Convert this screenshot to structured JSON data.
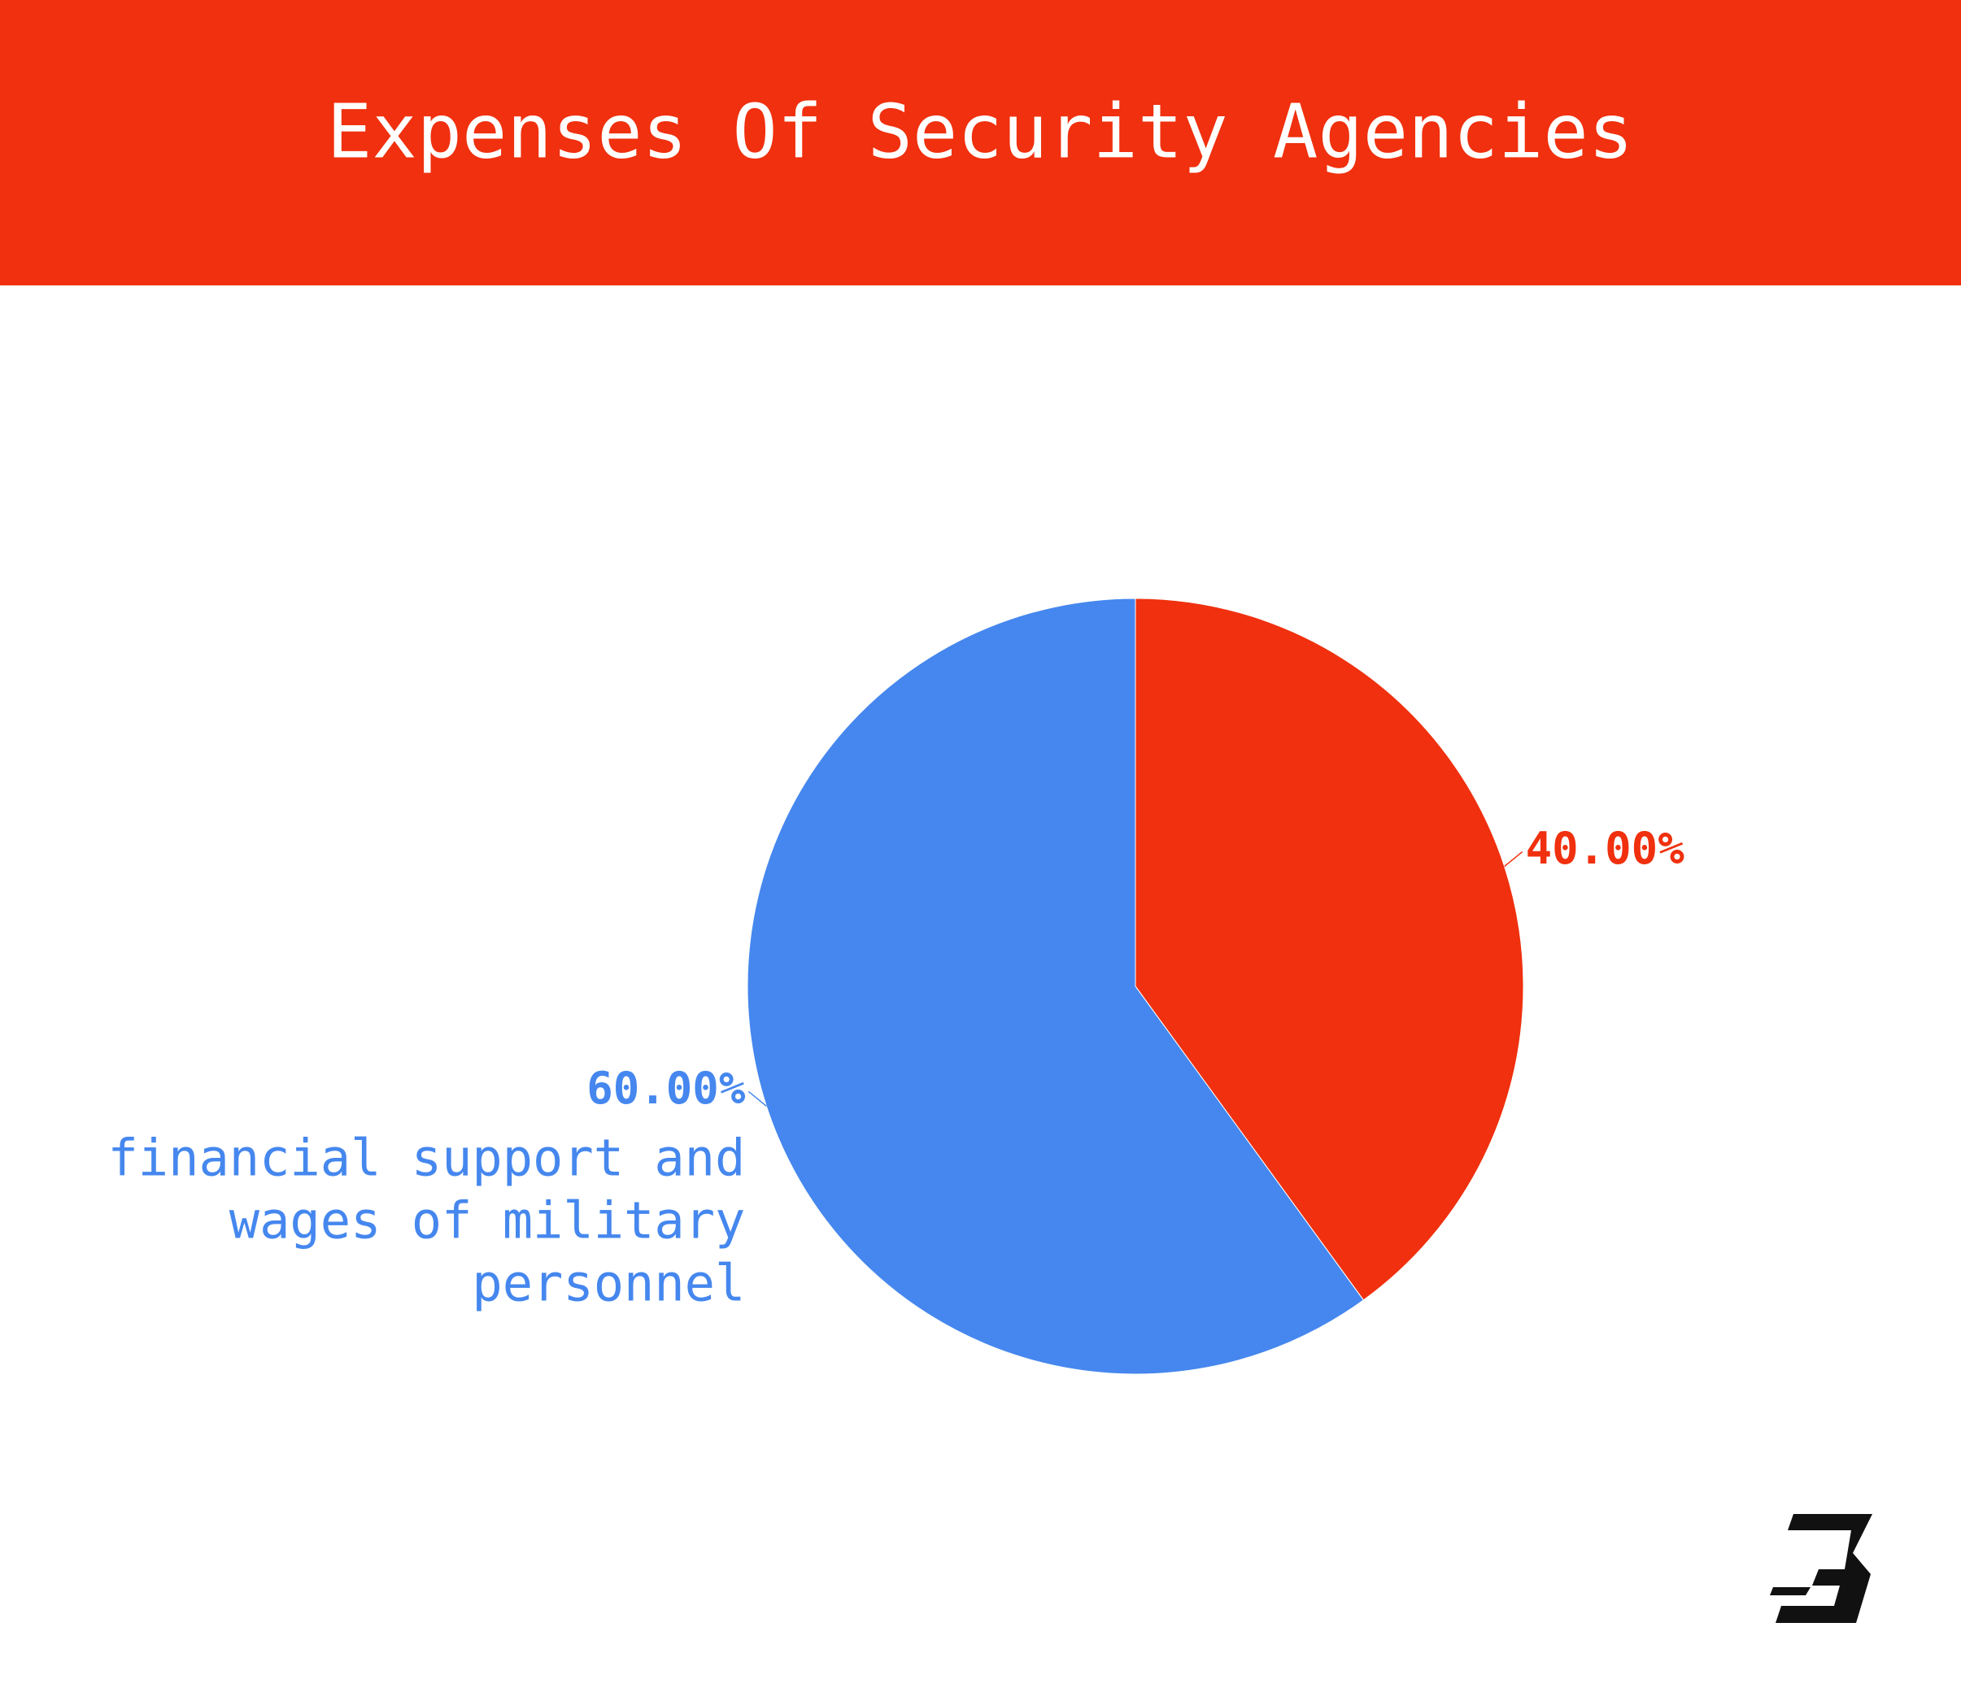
{
  "chart_data": {
    "type": "pie",
    "title": "Expenses Of Security Agencies",
    "categories": [
      null,
      "financial support and wages of military personnel"
    ],
    "values": [
      40,
      60
    ],
    "value_labels": [
      "40.00%",
      "60.00%"
    ],
    "colors": [
      "#f0300e",
      "#4587ee"
    ]
  }
}
